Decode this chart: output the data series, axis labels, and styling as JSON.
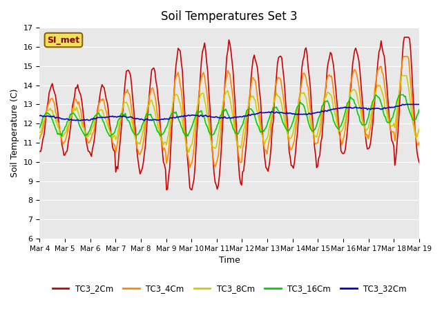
{
  "title": "Soil Temperatures Set 3",
  "xlabel": "Time",
  "ylabel": "Soil Temperature (C)",
  "ylim": [
    6.0,
    17.0
  ],
  "yticks": [
    6.0,
    7.0,
    8.0,
    9.0,
    10.0,
    11.0,
    12.0,
    13.0,
    14.0,
    15.0,
    16.0,
    17.0
  ],
  "annotation": "SI_met",
  "plot_bg": "#e8e8e8",
  "fig_bg": "#ffffff",
  "grid_color": "#ffffff",
  "colors": {
    "TC3_2Cm": "#cc0000",
    "TC3_4Cm": "#ff8800",
    "TC3_8Cm": "#cccc00",
    "TC3_16Cm": "#00cc00",
    "TC3_32Cm": "#0000cc"
  },
  "legend_labels": [
    "TC3_2Cm",
    "TC3_4Cm",
    "TC3_8Cm",
    "TC3_16Cm",
    "TC3_32Cm"
  ],
  "xtick_labels": [
    "Mar 4",
    "Mar 5",
    "Mar 6",
    "Mar 7",
    "Mar 8",
    "Mar 9",
    "Mar 10",
    "Mar 11",
    "Mar 12",
    "Mar 13",
    "Mar 14",
    "Mar 15",
    "Mar 16",
    "Mar 17",
    "Mar 18",
    "Mar 19"
  ],
  "n_days": 15,
  "points_per_day": 24
}
